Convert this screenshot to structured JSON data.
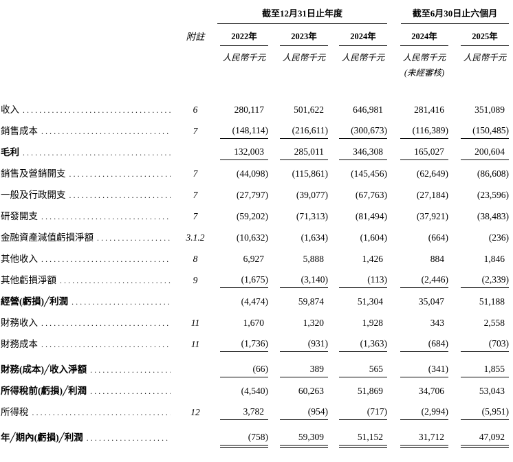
{
  "header": {
    "note_col": "附註",
    "group_annual": "截至12月31日止年度",
    "group_interim": "截至6月30日止六個月",
    "years": [
      "2022年",
      "2023年",
      "2024年",
      "2024年",
      "2025年"
    ],
    "unit": "人民幣千元",
    "unaudited": "(未經審核)"
  },
  "table": {
    "rows": [
      {
        "label": "收入",
        "note": "6",
        "bold": false,
        "line": "none",
        "values": [
          "280,117",
          "501,622",
          "646,981",
          "281,416",
          "351,089"
        ]
      },
      {
        "label": "銷售成本",
        "note": "7",
        "bold": false,
        "line": "single",
        "values": [
          "(148,114)",
          "(216,611)",
          "(300,673)",
          "(116,389)",
          "(150,485)"
        ]
      },
      {
        "label": "毛利",
        "note": "",
        "bold": true,
        "line": "single",
        "values": [
          "132,003",
          "285,011",
          "346,308",
          "165,027",
          "200,604"
        ]
      },
      {
        "label": "銷售及營銷開支",
        "note": "7",
        "bold": false,
        "line": "none",
        "values": [
          "(44,098)",
          "(115,861)",
          "(145,456)",
          "(62,649)",
          "(86,608)"
        ]
      },
      {
        "label": "一般及行政開支",
        "note": "7",
        "bold": false,
        "line": "none",
        "values": [
          "(27,797)",
          "(39,077)",
          "(67,763)",
          "(27,184)",
          "(23,596)"
        ]
      },
      {
        "label": "研發開支",
        "note": "7",
        "bold": false,
        "line": "none",
        "values": [
          "(59,202)",
          "(71,313)",
          "(81,494)",
          "(37,921)",
          "(38,483)"
        ]
      },
      {
        "label": "金融資產減值虧損淨額",
        "note": "3.1.2",
        "bold": false,
        "line": "none",
        "values": [
          "(10,632)",
          "(1,634)",
          "(1,604)",
          "(664)",
          "(236)"
        ]
      },
      {
        "label": "其他收入",
        "note": "8",
        "bold": false,
        "line": "none",
        "values": [
          "6,927",
          "5,888",
          "1,426",
          "884",
          "1,846"
        ]
      },
      {
        "label": "其他虧損淨額",
        "note": "9",
        "bold": false,
        "line": "single",
        "values": [
          "(1,675)",
          "(3,140)",
          "(113)",
          "(2,446)",
          "(2,339)"
        ]
      },
      {
        "label": "經營(虧損)╱利潤",
        "note": "",
        "bold": true,
        "line": "none",
        "values": [
          "(4,474)",
          "59,874",
          "51,304",
          "35,047",
          "51,188"
        ]
      },
      {
        "label": "財務收入",
        "note": "11",
        "bold": false,
        "line": "none",
        "values": [
          "1,670",
          "1,320",
          "1,928",
          "343",
          "2,558"
        ]
      },
      {
        "label": "財務成本",
        "note": "11",
        "bold": false,
        "line": "single",
        "values": [
          "(1,736)",
          "(931)",
          "(1,363)",
          "(684)",
          "(703)"
        ]
      },
      {
        "label": "財務(成本)╱收入淨額",
        "note": "",
        "bold": true,
        "line": "single",
        "gap": true,
        "values": [
          "(66)",
          "389",
          "565",
          "(341)",
          "1,855"
        ]
      },
      {
        "label": "所得稅前(虧損)╱利潤",
        "note": "",
        "bold": true,
        "line": "none",
        "values": [
          "(4,540)",
          "60,263",
          "51,869",
          "34,706",
          "53,043"
        ]
      },
      {
        "label": "所得稅",
        "note": "12",
        "bold": false,
        "line": "single",
        "values": [
          "3,782",
          "(954)",
          "(717)",
          "(2,994)",
          "(5,951)"
        ]
      },
      {
        "label": "年╱期內(虧損)╱利潤",
        "note": "",
        "bold": true,
        "line": "double",
        "gap": true,
        "values": [
          "(758)",
          "59,309",
          "51,152",
          "31,712",
          "47,092"
        ]
      }
    ]
  }
}
